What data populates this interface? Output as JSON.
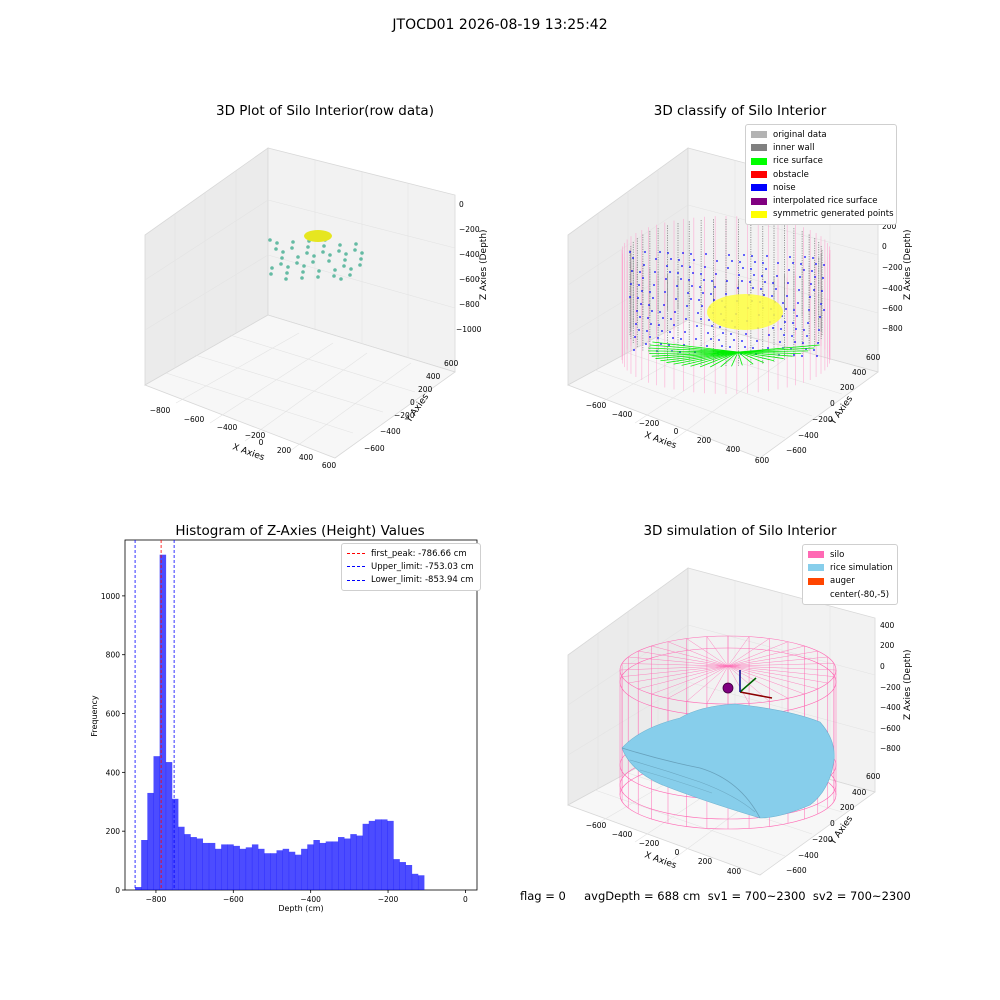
{
  "suptitle": "JTOCD01 2026-08-19 13:25:42",
  "plot1": {
    "title": "3D Plot of Silo Interior(row data)",
    "x_label": "X Axies",
    "y_label": "Y Axies",
    "z_label": "Z Axies (Depth)",
    "x_ticks": [
      "−800",
      "−600",
      "−400",
      "−200",
      "0",
      "200",
      "400",
      "600"
    ],
    "y_ticks": [
      "−600",
      "−400",
      "−200",
      "0",
      "200",
      "400",
      "600"
    ],
    "z_ticks": [
      "0",
      "−200",
      "−400",
      "−600",
      "−800",
      "−1000"
    ]
  },
  "plot2": {
    "title": "3D classify of Silo Interior",
    "x_label": "X Axies",
    "y_label": "Y Axies",
    "z_label": "Z Axies (Depth)",
    "x_ticks": [
      "−600",
      "−400",
      "−200",
      "0",
      "200",
      "400",
      "600"
    ],
    "y_ticks": [
      "−600",
      "−400",
      "−200",
      "0",
      "200",
      "400",
      "600"
    ],
    "z_ticks": [
      "200",
      "0",
      "−200",
      "−400",
      "−600",
      "−800"
    ],
    "legend": [
      {
        "label": "original data",
        "color": "#b3b3b3"
      },
      {
        "label": "inner wall",
        "color": "#808080"
      },
      {
        "label": "rice surface",
        "color": "#00ff00"
      },
      {
        "label": "obstacle",
        "color": "#ff0000"
      },
      {
        "label": "noise",
        "color": "#0000ff"
      },
      {
        "label": "interpolated rice surface",
        "color": "#800080"
      },
      {
        "label": "symmetric generated points",
        "color": "#ffff00"
      }
    ]
  },
  "plot3": {
    "title": "Histogram of Z-Axies (Height) Values",
    "legend": [
      {
        "label": "first_peak: -786.66 cm",
        "color": "#ff0000"
      },
      {
        "label": "Upper_limit: -753.03 cm",
        "color": "#0000ff"
      },
      {
        "label": "Lower_limit: -853.94 cm",
        "color": "#0000ff"
      }
    ]
  },
  "plot4": {
    "title": "3D simulation of Silo Interior",
    "x_label": "X Axies",
    "y_label": "Y Axies",
    "z_label": "Z Axies (Depth)",
    "x_ticks": [
      "−600",
      "−400",
      "−200",
      "0",
      "200",
      "400"
    ],
    "y_ticks": [
      "−600",
      "−400",
      "−200",
      "0",
      "200",
      "400",
      "600"
    ],
    "z_ticks": [
      "400",
      "200",
      "0",
      "−200",
      "−400",
      "−600",
      "−800"
    ],
    "legend": [
      {
        "label": "silo",
        "color": "#ff69b4"
      },
      {
        "label": "rice simulation",
        "color": "#87ceeb"
      },
      {
        "label": "auger",
        "color": "#ff4500"
      },
      {
        "label": "center(-80,-5)",
        "color": "#ffffff"
      }
    ]
  },
  "footer": "flag = 0     avgDepth = 688 cm  sv1 = 700~2300  sv2 = 700~2300",
  "chart_data": {
    "type": "bar",
    "title": "Histogram of Z-Axies (Height) Values",
    "xlabel": "Depth (cm)",
    "ylabel": "Frequency",
    "xlim": [
      -880,
      30
    ],
    "ylim": [
      0,
      1190
    ],
    "x_ticks": [
      -800,
      -600,
      -400,
      -200,
      0
    ],
    "y_ticks": [
      0,
      200,
      400,
      600,
      800,
      1000
    ],
    "bin_start": -854,
    "bin_width": 15.9,
    "values": [
      10,
      170,
      330,
      455,
      1140,
      435,
      310,
      215,
      190,
      180,
      175,
      160,
      160,
      140,
      155,
      155,
      150,
      140,
      145,
      155,
      140,
      125,
      125,
      135,
      140,
      130,
      120,
      140,
      155,
      170,
      160,
      165,
      165,
      180,
      175,
      190,
      185,
      225,
      235,
      240,
      240,
      235,
      105,
      95,
      85,
      55,
      50
    ],
    "vlines": [
      {
        "x": -786.66,
        "color": "#ff0000"
      },
      {
        "x": -753.03,
        "color": "#0000ff"
      },
      {
        "x": -853.94,
        "color": "#0000ff"
      }
    ],
    "bar_color": "#0000ff",
    "bar_alpha": 0.7,
    "legend_position": "top-right"
  }
}
